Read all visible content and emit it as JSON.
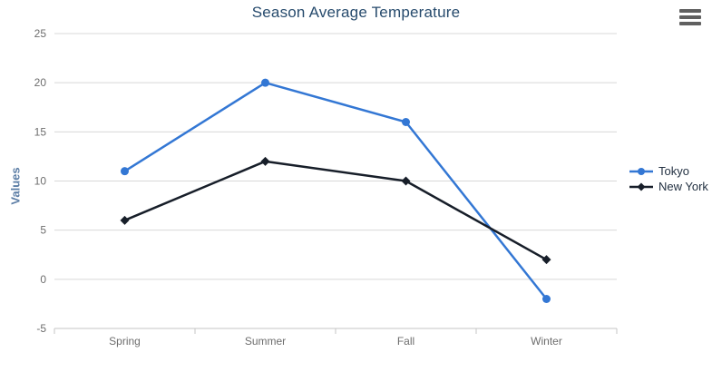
{
  "header": {
    "menu_tooltip": "Chart context menu"
  },
  "chart_data": {
    "type": "line",
    "title": "Season Average Temperature",
    "categories": [
      "Spring",
      "Summer",
      "Fall",
      "Winter"
    ],
    "series": [
      {
        "name": "Tokyo",
        "values": [
          11,
          20,
          16,
          -2
        ],
        "color": "#3377d4",
        "marker": "circle"
      },
      {
        "name": "New York",
        "values": [
          6,
          12,
          10,
          2
        ],
        "color": "#171e29",
        "marker": "diamond"
      }
    ],
    "xlabel": "",
    "ylabel": "Values",
    "ylim": [
      -5,
      25
    ],
    "yticks": [
      -5,
      0,
      5,
      10,
      15,
      20,
      25
    ],
    "grid": "horizontal",
    "legend_position": "right"
  },
  "colors": {
    "title": "#274b6d",
    "axis_title": "#5b7da5",
    "tick_label": "#6d6d6d",
    "gridline": "#d8d8d8",
    "axis_line": "#c6c6c6",
    "legend_text": "#233142",
    "menu_icon": "#606060",
    "background": "#ffffff"
  }
}
